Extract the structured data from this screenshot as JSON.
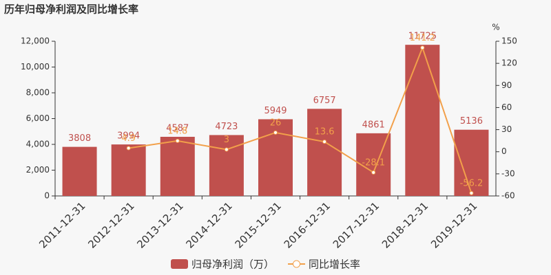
{
  "chart_data": {
    "type": "bar",
    "title": "历年归母净利润及同比增长率",
    "y2_label": "%",
    "categories": [
      "2011-12-31",
      "2012-12-31",
      "2013-12-31",
      "2014-12-31",
      "2015-12-31",
      "2016-12-31",
      "2017-12-31",
      "2018-12-31",
      "2019-12-31"
    ],
    "series": [
      {
        "name": "归母净利润（万）",
        "type": "bar",
        "color": "#c0504d",
        "values": [
          3808,
          3994,
          4587,
          4723,
          5949,
          6757,
          4861,
          11725,
          5136
        ]
      },
      {
        "name": "同比增长率",
        "type": "line",
        "axis": "y2",
        "color": "#f2a04a",
        "values": [
          null,
          4.9,
          14.8,
          3,
          26,
          13.6,
          -28.1,
          141.2,
          -56.2
        ]
      }
    ],
    "ylim": [
      0,
      12000
    ],
    "yticks": [
      0,
      {
        "value": 2000,
        "label": "2,000"
      },
      {
        "value": 4000,
        "label": "4,000"
      },
      {
        "value": 6000,
        "label": "6,000"
      },
      {
        "value": 8000,
        "label": "8,000"
      },
      {
        "value": 10000,
        "label": "10,000"
      },
      {
        "value": 12000,
        "label": "12,000"
      }
    ],
    "y2lim": [
      -60,
      150
    ],
    "y2ticks": [
      -60,
      -30,
      0,
      30,
      60,
      90,
      120,
      150
    ],
    "grid": false
  }
}
